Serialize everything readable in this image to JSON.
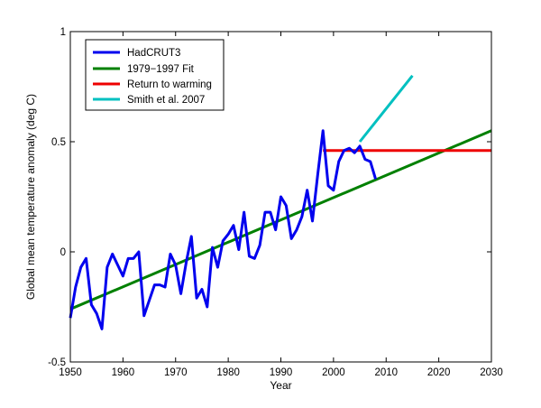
{
  "chart_data": {
    "type": "line",
    "title": "",
    "xlabel": "Year",
    "ylabel": "Global mean temperature anomaly (deg C)",
    "xlim": [
      1950,
      2030
    ],
    "ylim": [
      -0.5,
      1
    ],
    "xticks": [
      1950,
      1960,
      1970,
      1980,
      1990,
      2000,
      2010,
      2020,
      2030
    ],
    "yticks": [
      -0.5,
      0,
      0.5,
      1
    ],
    "ytick_labels": [
      "-0.5",
      "0",
      "0.5",
      "1"
    ],
    "grid": false,
    "legend_position": "top-left",
    "series": [
      {
        "name": "HadCRUT3",
        "color": "#0000ee",
        "x": [
          1950,
          1951,
          1952,
          1953,
          1954,
          1955,
          1956,
          1957,
          1958,
          1959,
          1960,
          1961,
          1962,
          1963,
          1964,
          1965,
          1966,
          1967,
          1968,
          1969,
          1970,
          1971,
          1972,
          1973,
          1974,
          1975,
          1976,
          1977,
          1978,
          1979,
          1980,
          1981,
          1982,
          1983,
          1984,
          1985,
          1986,
          1987,
          1988,
          1989,
          1990,
          1991,
          1992,
          1993,
          1994,
          1995,
          1996,
          1997,
          1998,
          1999,
          2000,
          2001,
          2002,
          2003,
          2004,
          2005,
          2006,
          2007,
          2008
        ],
        "values": [
          -0.3,
          -0.16,
          -0.07,
          -0.03,
          -0.24,
          -0.28,
          -0.35,
          -0.07,
          -0.01,
          -0.06,
          -0.11,
          -0.03,
          -0.03,
          -0.0,
          -0.29,
          -0.22,
          -0.15,
          -0.15,
          -0.16,
          -0.01,
          -0.06,
          -0.19,
          -0.05,
          0.07,
          -0.21,
          -0.17,
          -0.25,
          0.02,
          -0.07,
          0.05,
          0.08,
          0.12,
          0.01,
          0.18,
          -0.02,
          -0.03,
          0.03,
          0.18,
          0.18,
          0.1,
          0.25,
          0.21,
          0.06,
          0.1,
          0.16,
          0.28,
          0.14,
          0.35,
          0.55,
          0.3,
          0.28,
          0.41,
          0.46,
          0.47,
          0.45,
          0.48,
          0.42,
          0.41,
          0.33
        ]
      },
      {
        "name": "1979−1997 Fit",
        "color": "#008000",
        "x": [
          1950,
          2030
        ],
        "values": [
          -0.26,
          0.55
        ]
      },
      {
        "name": "Return to warming",
        "color": "#ee0000",
        "x": [
          1998,
          2030
        ],
        "values": [
          0.46,
          0.46
        ]
      },
      {
        "name": "Smith et al. 2007",
        "color": "#00c0c0",
        "x": [
          2005,
          2015
        ],
        "values": [
          0.5,
          0.8
        ]
      }
    ]
  }
}
